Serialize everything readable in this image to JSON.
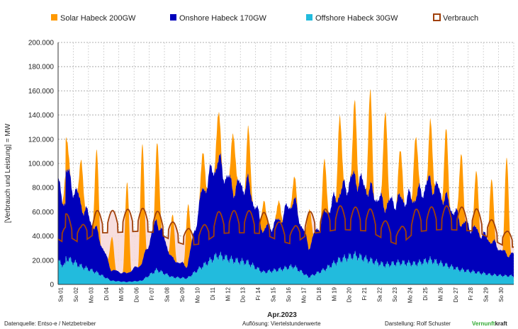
{
  "chart_data": {
    "type": "area",
    "ylabel": "[Verbrauch und Leistung] = MW",
    "xlabel": "Apr.2023",
    "ylim": [
      0,
      200000
    ],
    "yticks": [
      0,
      20000,
      40000,
      60000,
      80000,
      100000,
      120000,
      140000,
      160000,
      180000,
      200000
    ],
    "ytick_labels": [
      "0",
      "20.000",
      "40.000",
      "60.000",
      "80.000",
      "100.000",
      "120.000",
      "140.000",
      "160.000",
      "180.000",
      "200.000"
    ],
    "grid": true,
    "legend_position": "top",
    "categories": [
      "Sa 01",
      "So 02",
      "Mo 03",
      "Di 04",
      "Mi 05",
      "Do 06",
      "Fr 07",
      "Sa 08",
      "So 09",
      "Mo 10",
      "Di 11",
      "Mi 12",
      "Do 13",
      "Fr 14",
      "Sa 15",
      "So 16",
      "Mo 17",
      "Di 18",
      "Mi 19",
      "Do 20",
      "Fr 21",
      "Sa 22",
      "So 23",
      "Mo 24",
      "Di 25",
      "Mi 26",
      "Do 27",
      "Fr 28",
      "Sa 29",
      "So 30"
    ],
    "series": [
      {
        "name": "Solar Habeck 200GW",
        "color": "#FF9900",
        "values": [
          27000,
          38000,
          63000,
          28000,
          75000,
          97000,
          67000,
          35000,
          48000,
          30000,
          39000,
          50000,
          41000,
          25000,
          15000,
          18000,
          33000,
          42000,
          65000,
          61000,
          78000,
          82000,
          38000,
          52000,
          50000,
          53000,
          60000,
          47000,
          53000,
          80000
        ]
      },
      {
        "name": "Onshore Habeck 170GW",
        "color": "#0000BB",
        "values": [
          72000,
          52000,
          35000,
          9000,
          7000,
          14000,
          42000,
          15000,
          10000,
          62000,
          78000,
          60000,
          65000,
          35000,
          40000,
          55000,
          25000,
          45000,
          55000,
          65000,
          58000,
          50000,
          52000,
          55000,
          65000,
          55000,
          40000,
          35000,
          28000,
          18000
        ]
      },
      {
        "name": "Offshore Habeck 30GW",
        "color": "#22BBDD",
        "values": [
          22000,
          15000,
          10000,
          3000,
          2000,
          3000,
          12000,
          6000,
          5000,
          15000,
          24000,
          20000,
          18000,
          10000,
          12000,
          15000,
          6000,
          12000,
          20000,
          24000,
          20000,
          16000,
          18000,
          17000,
          20000,
          16000,
          12000,
          10000,
          8000,
          7000
        ]
      },
      {
        "name": "Verbrauch",
        "color": "#A0400A",
        "values": [
          59000,
          48000,
          61000,
          61000,
          62000,
          63000,
          61000,
          52000,
          46000,
          48000,
          60000,
          61000,
          61000,
          60000,
          52000,
          47000,
          60000,
          62000,
          65000,
          64000,
          63000,
          53000,
          46000,
          62000,
          64000,
          65000,
          64000,
          63000,
          54000,
          44000
        ]
      }
    ]
  },
  "footer": {
    "left": "Datenquelle: Entso-e  / Netzbetreiber",
    "center": "Auflösung: Viertelstundenwerte",
    "credit": "Darstellung:  Rolf Schuster",
    "brand_a": "Vernunft",
    "brand_b": "kraft",
    "brand_color": "#33AA33"
  }
}
